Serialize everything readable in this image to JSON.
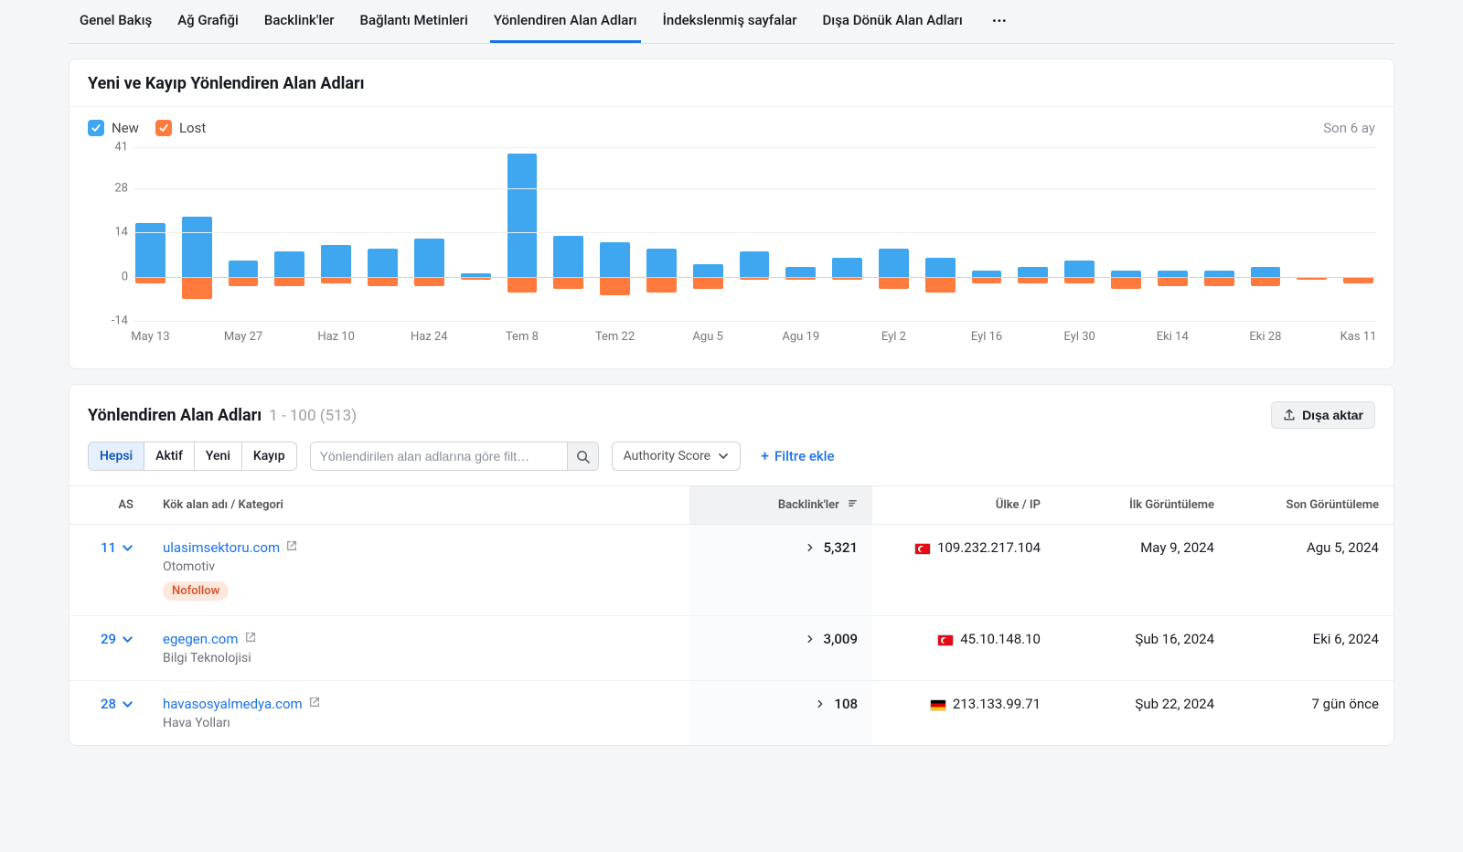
{
  "tabs": {
    "items": [
      "Genel Bakış",
      "Ağ Grafiği",
      "Backlink'ler",
      "Bağlantı Metinleri",
      "Yönlendiren Alan Adları",
      "İndekslenmiş sayfalar",
      "Dışa Dönük Alan Adları"
    ],
    "active_index": 4,
    "more_glyph": "···"
  },
  "chart_card": {
    "title": "Yeni ve Kayıp Yönlendiren Alan Adları",
    "legend": {
      "new": "New",
      "lost": "Lost"
    },
    "timeframe": "Son 6 ay",
    "colors": {
      "new": "#3ea7f0",
      "lost": "#ff7a3d",
      "grid": "#edeef0",
      "baseline": "#d3d5d9",
      "bg": "#ffffff"
    },
    "y": {
      "min": -14,
      "max": 41,
      "ticks": [
        41,
        28,
        14,
        0,
        -14
      ]
    },
    "x_labels": [
      "May 13",
      "",
      "May 27",
      "",
      "Haz 10",
      "",
      "Haz 24",
      "",
      "Tem 8",
      "",
      "Tem 22",
      "",
      "Agu 5",
      "",
      "Agu 19",
      "",
      "Eyl 2",
      "",
      "Eyl 16",
      "",
      "Eyl 30",
      "",
      "Eki 14",
      "",
      "Eki 28",
      "",
      "Kas 11"
    ],
    "series": {
      "new": [
        17,
        19,
        5,
        8,
        10,
        9,
        12,
        1,
        39,
        13,
        11,
        9,
        4,
        8,
        3,
        6,
        9,
        6,
        2,
        3,
        5,
        2,
        2,
        2,
        3,
        0,
        0
      ],
      "lost": [
        -2,
        -7,
        -3,
        -3,
        -2,
        -3,
        -3,
        -1,
        -5,
        -4,
        -6,
        -5,
        -4,
        -1,
        -1,
        -1,
        -4,
        -5,
        -2,
        -2,
        -2,
        -4,
        -3,
        -3,
        -3,
        -1,
        -2
      ]
    }
  },
  "table_section": {
    "title": "Yönlendiren Alan Adları",
    "range": "1 - 100 (513)",
    "export": "Dışa aktar",
    "filters": {
      "segments": [
        "Hepsi",
        "Aktif",
        "Yeni",
        "Kayıp"
      ],
      "active_segment": 0,
      "search_placeholder": "Yönlendirilen alan adlarına göre filt…",
      "authority_label": "Authority Score",
      "add_filter": "Filtre ekle"
    },
    "columns": {
      "as": "AS",
      "domain": "Kök alan adı / Kategori",
      "backlinks": "Backlink'ler",
      "country_ip": "Ülke / IP",
      "first_seen": "İlk Görüntüleme",
      "last_seen": "Son Görüntüleme"
    },
    "rows": [
      {
        "as": "11",
        "domain": "ulasimsektoru.com",
        "category": "Otomotiv",
        "nofollow": "Nofollow",
        "backlinks": "5,321",
        "flag": "tr",
        "ip": "109.232.217.104",
        "first_seen": "May 9, 2024",
        "last_seen": "Agu 5, 2024"
      },
      {
        "as": "29",
        "domain": "egegen.com",
        "category": "Bilgi Teknolojisi",
        "nofollow": "",
        "backlinks": "3,009",
        "flag": "tr",
        "ip": "45.10.148.10",
        "first_seen": "Şub 16, 2024",
        "last_seen": "Eki 6, 2024"
      },
      {
        "as": "28",
        "domain": "havasosyalmedya.com",
        "category": "Hava Yolları",
        "nofollow": "",
        "backlinks": "108",
        "flag": "de",
        "ip": "213.133.99.71",
        "first_seen": "Şub 22, 2024",
        "last_seen": "7 gün önce"
      }
    ]
  }
}
